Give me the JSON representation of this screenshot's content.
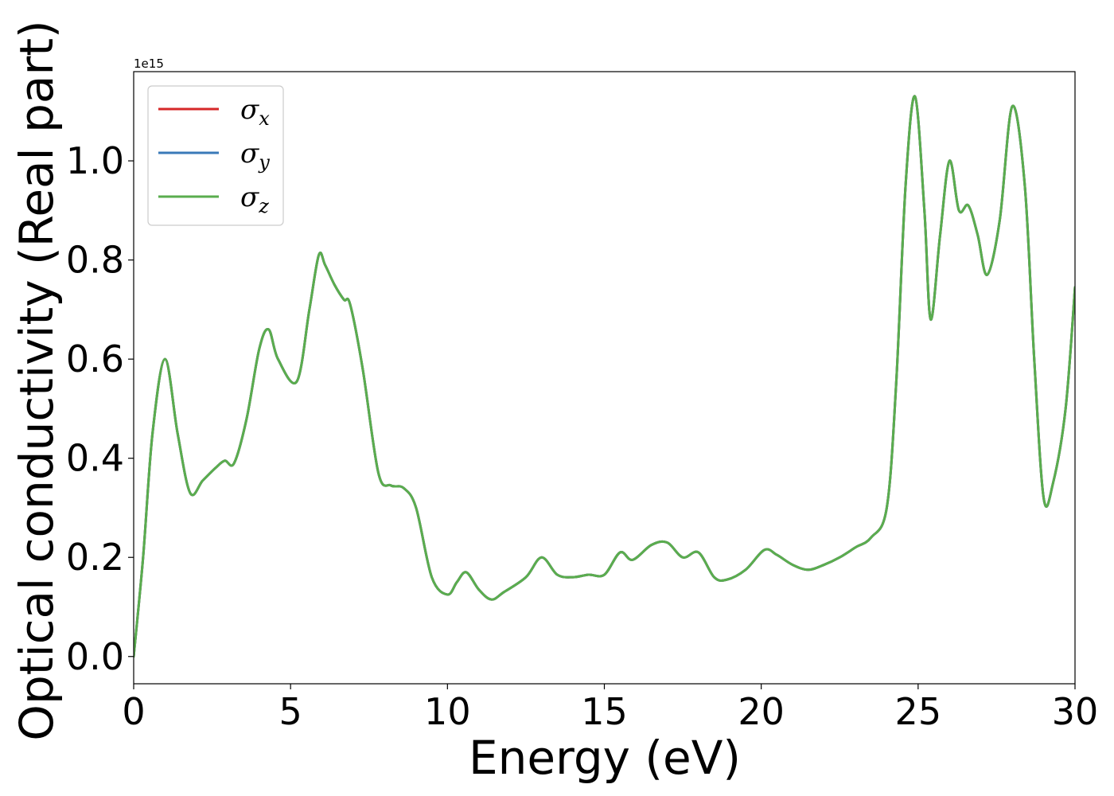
{
  "chart_data": {
    "type": "line",
    "xlabel": "Energy (eV)",
    "ylabel": "Optical conductivity (Real part)",
    "y_offset_label": "1e15",
    "y_scale": 1000000000000000.0,
    "xlim": [
      0,
      30
    ],
    "ylim": [
      -0.055,
      1.18
    ],
    "xticks": [
      0,
      5,
      10,
      15,
      20,
      25,
      30
    ],
    "xtick_labels": [
      "0",
      "5",
      "10",
      "15",
      "20",
      "25",
      "30"
    ],
    "yticks": [
      0.0,
      0.2,
      0.4,
      0.6,
      0.8,
      1.0
    ],
    "ytick_labels": [
      "0.0",
      "0.2",
      "0.4",
      "0.6",
      "0.8",
      "1.0"
    ],
    "grid": false,
    "legend_position": "top-left",
    "series": [
      {
        "name": "σx",
        "symbol": "σ",
        "subscript": "x",
        "color": "#d62728",
        "x": [
          0,
          0.3,
          0.6,
          1.0,
          1.4,
          1.8,
          2.2,
          2.6,
          2.9,
          3.2,
          3.6,
          4.0,
          4.3,
          4.6,
          5.2,
          5.6,
          5.9,
          6.1,
          6.4,
          6.7,
          6.9,
          7.3,
          7.8,
          8.2,
          8.6,
          9.0,
          9.5,
          10.0,
          10.3,
          10.6,
          11.0,
          11.4,
          11.8,
          12.5,
          13.0,
          13.5,
          14.0,
          14.5,
          15.0,
          15.5,
          15.9,
          16.5,
          17.0,
          17.5,
          18.0,
          18.5,
          18.9,
          19.5,
          20.1,
          20.5,
          21.0,
          21.5,
          22.0,
          22.5,
          23.0,
          23.5,
          24.0,
          24.3,
          24.6,
          24.9,
          25.2,
          25.4,
          25.7,
          26.0,
          26.3,
          26.6,
          26.9,
          27.2,
          27.6,
          28.0,
          28.4,
          28.7,
          29.0,
          29.3,
          29.7,
          30.0
        ],
        "y": [
          0.0,
          0.2,
          0.45,
          0.6,
          0.45,
          0.33,
          0.355,
          0.38,
          0.395,
          0.39,
          0.48,
          0.62,
          0.66,
          0.6,
          0.555,
          0.7,
          0.81,
          0.79,
          0.75,
          0.72,
          0.71,
          0.58,
          0.37,
          0.345,
          0.34,
          0.3,
          0.16,
          0.125,
          0.15,
          0.17,
          0.135,
          0.115,
          0.13,
          0.16,
          0.2,
          0.165,
          0.16,
          0.165,
          0.165,
          0.21,
          0.195,
          0.225,
          0.23,
          0.2,
          0.21,
          0.16,
          0.155,
          0.175,
          0.215,
          0.205,
          0.185,
          0.175,
          0.185,
          0.2,
          0.22,
          0.24,
          0.3,
          0.55,
          0.95,
          1.13,
          0.9,
          0.68,
          0.85,
          1.0,
          0.9,
          0.91,
          0.85,
          0.77,
          0.88,
          1.11,
          0.95,
          0.6,
          0.32,
          0.35,
          0.5,
          0.745
        ]
      },
      {
        "name": "σy",
        "symbol": "σ",
        "subscript": "y",
        "color": "#3a7ab8",
        "x": [
          0,
          0.3,
          0.6,
          1.0,
          1.4,
          1.8,
          2.2,
          2.6,
          2.9,
          3.2,
          3.6,
          4.0,
          4.3,
          4.6,
          5.2,
          5.6,
          5.9,
          6.1,
          6.4,
          6.7,
          6.9,
          7.3,
          7.8,
          8.2,
          8.6,
          9.0,
          9.5,
          10.0,
          10.3,
          10.6,
          11.0,
          11.4,
          11.8,
          12.5,
          13.0,
          13.5,
          14.0,
          14.5,
          15.0,
          15.5,
          15.9,
          16.5,
          17.0,
          17.5,
          18.0,
          18.5,
          18.9,
          19.5,
          20.1,
          20.5,
          21.0,
          21.5,
          22.0,
          22.5,
          23.0,
          23.5,
          24.0,
          24.3,
          24.6,
          24.9,
          25.2,
          25.4,
          25.7,
          26.0,
          26.3,
          26.6,
          26.9,
          27.2,
          27.6,
          28.0,
          28.4,
          28.7,
          29.0,
          29.3,
          29.7,
          30.0
        ],
        "y": [
          0.0,
          0.2,
          0.45,
          0.6,
          0.45,
          0.33,
          0.355,
          0.38,
          0.395,
          0.39,
          0.48,
          0.62,
          0.66,
          0.6,
          0.555,
          0.7,
          0.81,
          0.79,
          0.75,
          0.72,
          0.71,
          0.58,
          0.37,
          0.345,
          0.34,
          0.3,
          0.16,
          0.125,
          0.15,
          0.17,
          0.135,
          0.115,
          0.13,
          0.16,
          0.2,
          0.165,
          0.16,
          0.165,
          0.165,
          0.21,
          0.195,
          0.225,
          0.23,
          0.2,
          0.21,
          0.16,
          0.155,
          0.175,
          0.215,
          0.205,
          0.185,
          0.175,
          0.185,
          0.2,
          0.22,
          0.24,
          0.3,
          0.55,
          0.95,
          1.13,
          0.9,
          0.68,
          0.85,
          1.0,
          0.9,
          0.91,
          0.85,
          0.77,
          0.88,
          1.11,
          0.95,
          0.6,
          0.32,
          0.35,
          0.5,
          0.745
        ]
      },
      {
        "name": "σz",
        "symbol": "σ",
        "subscript": "z",
        "color": "#5aad4e",
        "x": [
          0,
          0.3,
          0.6,
          1.0,
          1.4,
          1.8,
          2.2,
          2.6,
          2.9,
          3.2,
          3.6,
          4.0,
          4.3,
          4.6,
          5.2,
          5.6,
          5.9,
          6.1,
          6.4,
          6.7,
          6.9,
          7.3,
          7.8,
          8.2,
          8.6,
          9.0,
          9.5,
          10.0,
          10.3,
          10.6,
          11.0,
          11.4,
          11.8,
          12.5,
          13.0,
          13.5,
          14.0,
          14.5,
          15.0,
          15.5,
          15.9,
          16.5,
          17.0,
          17.5,
          18.0,
          18.5,
          18.9,
          19.5,
          20.1,
          20.5,
          21.0,
          21.5,
          22.0,
          22.5,
          23.0,
          23.5,
          24.0,
          24.3,
          24.6,
          24.9,
          25.2,
          25.4,
          25.7,
          26.0,
          26.3,
          26.6,
          26.9,
          27.2,
          27.6,
          28.0,
          28.4,
          28.7,
          29.0,
          29.3,
          29.7,
          30.0
        ],
        "y": [
          0.0,
          0.2,
          0.45,
          0.6,
          0.45,
          0.33,
          0.355,
          0.38,
          0.395,
          0.39,
          0.48,
          0.62,
          0.66,
          0.6,
          0.555,
          0.7,
          0.81,
          0.79,
          0.75,
          0.72,
          0.71,
          0.58,
          0.37,
          0.345,
          0.34,
          0.3,
          0.16,
          0.125,
          0.15,
          0.17,
          0.135,
          0.115,
          0.13,
          0.16,
          0.2,
          0.165,
          0.16,
          0.165,
          0.165,
          0.21,
          0.195,
          0.225,
          0.23,
          0.2,
          0.21,
          0.16,
          0.155,
          0.175,
          0.215,
          0.205,
          0.185,
          0.175,
          0.185,
          0.2,
          0.22,
          0.24,
          0.3,
          0.55,
          0.95,
          1.13,
          0.9,
          0.68,
          0.85,
          1.0,
          0.9,
          0.91,
          0.85,
          0.77,
          0.88,
          1.11,
          0.95,
          0.6,
          0.32,
          0.35,
          0.5,
          0.745
        ]
      }
    ]
  }
}
